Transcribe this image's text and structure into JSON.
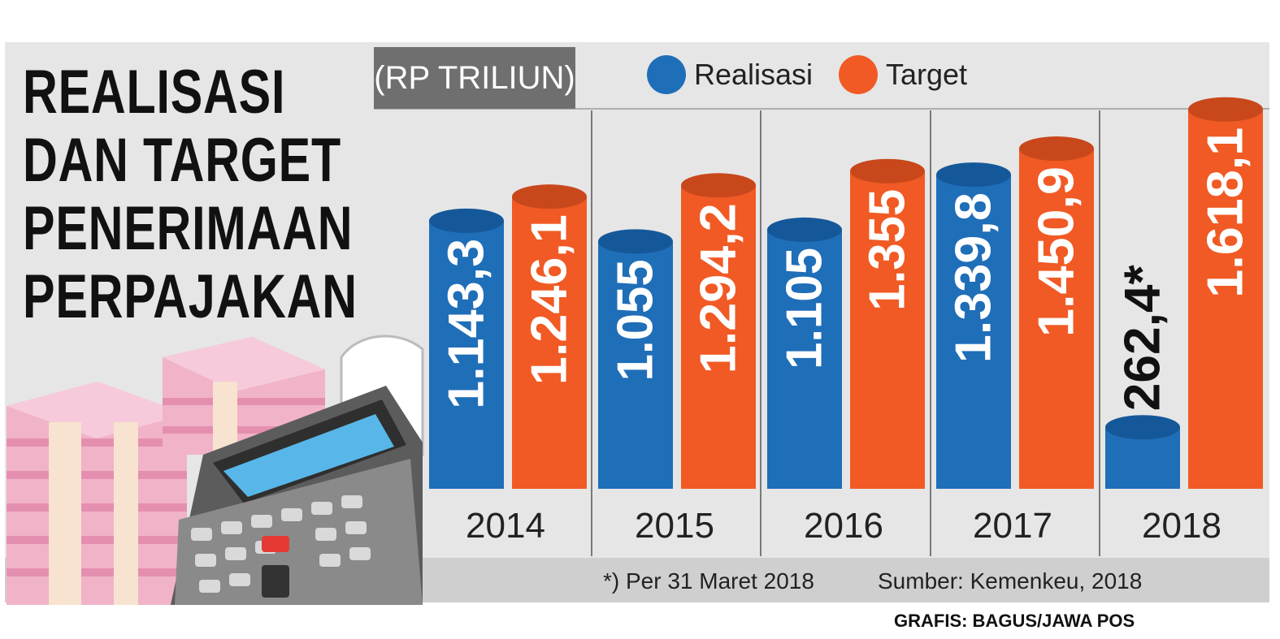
{
  "header": {
    "title_lines": [
      "REALISASI",
      "DAN TARGET",
      "PENERIMAAN",
      "PERPAJAKAN"
    ],
    "unit": "(RP TRILIUN)"
  },
  "colors": {
    "realisasi": "#1f6eb8",
    "target": "#f15a24",
    "panel": "#e6e6e6",
    "band": "#cfcfcf"
  },
  "chart_data": {
    "type": "bar",
    "categories": [
      "2014",
      "2015",
      "2016",
      "2017",
      "2018"
    ],
    "series": [
      {
        "name": "Realisasi",
        "values": [
          1143.3,
          1055,
          1105,
          1339.8,
          262.4
        ]
      },
      {
        "name": "Target",
        "values": [
          1246.1,
          1294.2,
          1355,
          1450.9,
          1618.1
        ]
      }
    ],
    "value_labels": {
      "Realisasi": [
        "1.143,3",
        "1.055",
        "1.105",
        "1.339,8",
        "262,4*"
      ],
      "Target": [
        "1.246,1",
        "1.294,2",
        "1.355",
        "1.450,9",
        "1.618,1"
      ]
    },
    "ylim": [
      0,
      1700
    ],
    "legend": "top",
    "grid": false
  },
  "footer": {
    "note": "*) Per 31 Maret 2018",
    "source": "Sumber: Kemenkeu, 2018",
    "credit": "GRAFIS: BAGUS/JAWA POS"
  }
}
